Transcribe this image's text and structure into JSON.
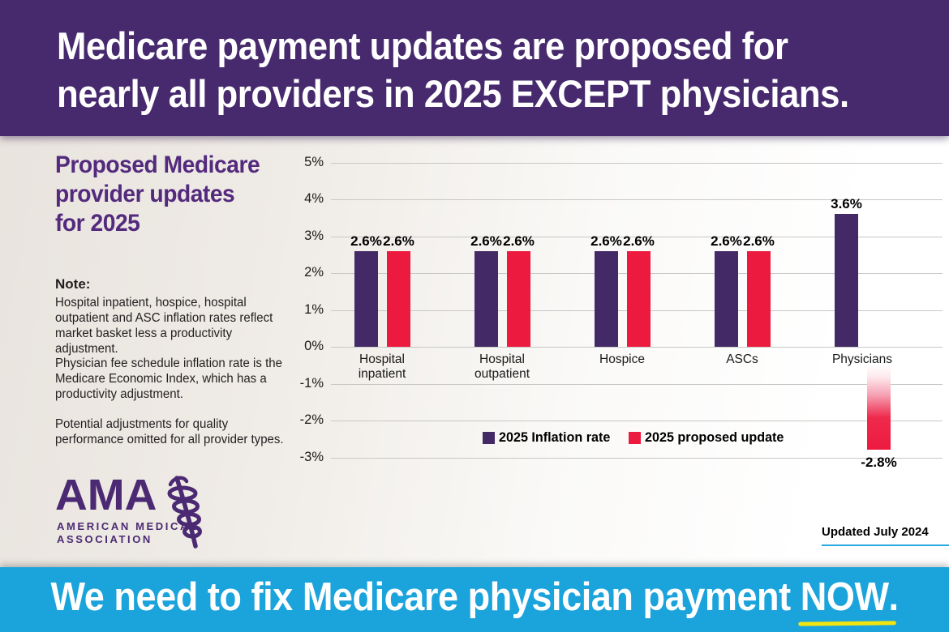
{
  "header": {
    "headline_lines": [
      "Medicare payment updates are proposed for",
      "nearly all providers in 2025 EXCEPT physicians."
    ]
  },
  "sidebar": {
    "title_lines": [
      "Proposed Medicare",
      "provider updates",
      "for 2025"
    ],
    "note_heading": "Note:",
    "notes": [
      "Hospital inpatient, hospice, hospital outpatient and ASC inflation rates reflect market basket less a productivity adjustment.",
      "Physician fee schedule inflation rate is the Medicare Economic Index, which has a productivity adjustment.",
      "Potential adjustments for quality performance omitted for all provider types."
    ],
    "logo": {
      "acronym": "AMA",
      "line1": "AMERICAN MEDICAL",
      "line2": "ASSOCIATION"
    }
  },
  "chart_data": {
    "type": "bar",
    "title": "",
    "categories": [
      "Hospital inpatient",
      "Hospital outpatient",
      "Hospice",
      "ASCs",
      "Physicians"
    ],
    "series": [
      {
        "name": "2025 Inflation rate",
        "color": "#432a66",
        "values": [
          2.6,
          2.6,
          2.6,
          2.6,
          3.6
        ]
      },
      {
        "name": "2025 proposed update",
        "color": "#ed1a40",
        "values": [
          2.6,
          2.6,
          2.6,
          2.6,
          -2.8
        ]
      }
    ],
    "value_labels": [
      [
        "2.6%",
        "2.6%"
      ],
      [
        "2.6%",
        "2.6%"
      ],
      [
        "2.6%",
        "2.6%"
      ],
      [
        "2.6%",
        "2.6%"
      ],
      [
        "3.6%",
        "-2.8%"
      ]
    ],
    "y_ticks": [
      "5%",
      "4%",
      "3%",
      "2%",
      "1%",
      "0%",
      "-1%",
      "-2%",
      "-3%"
    ],
    "ylim": [
      -3,
      5
    ],
    "grid": true,
    "legend_position": "inside-bottom-center"
  },
  "footnote": {
    "updated": "Updated July 2024"
  },
  "footer": {
    "message": "We need to fix Medicare physician payment ",
    "highlight": "NOW",
    "period": "."
  },
  "colors": {
    "header_bg": "#472a6e",
    "sidebar_title": "#532a7d",
    "bar_inflation": "#432a66",
    "bar_update": "#ed1a40",
    "footer_bg": "#1ba3dc",
    "underline_blue": "#29abe2",
    "highlight_yellow": "#f2e50e",
    "gridline": "#c9c7c5",
    "text": "#231f20"
  }
}
